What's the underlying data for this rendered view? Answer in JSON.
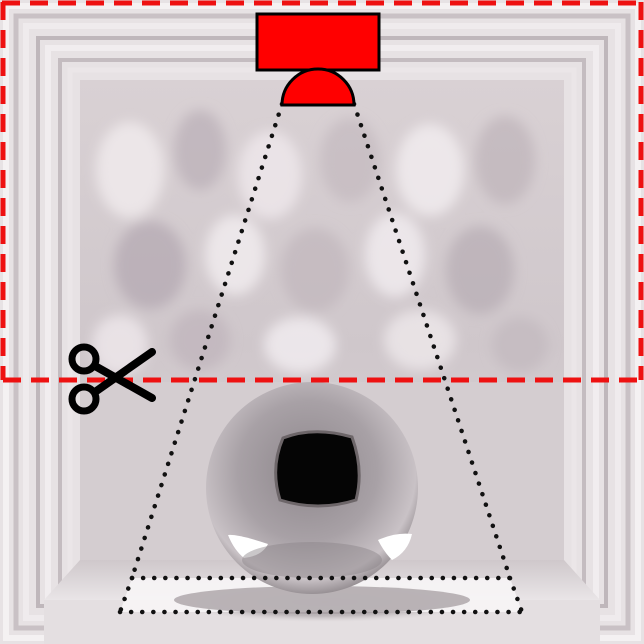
{
  "colors": {
    "backdrop": "#d6ced0",
    "frame_light": "#f2eef0",
    "frame_mid": "#cfc7ca",
    "frame_dark": "#a79ea2",
    "floor": "#e6e1e3",
    "sphere_mid": "#a59ea3",
    "sphere_dark": "#4e484d",
    "cut_line": "#ee1111",
    "light_source": "#ff0000",
    "outline": "#000000",
    "spotlight_outline": "#111111",
    "shadow": "#8e8689"
  },
  "icons": {
    "cut": "scissors-icon",
    "light": "light-source-icon"
  }
}
